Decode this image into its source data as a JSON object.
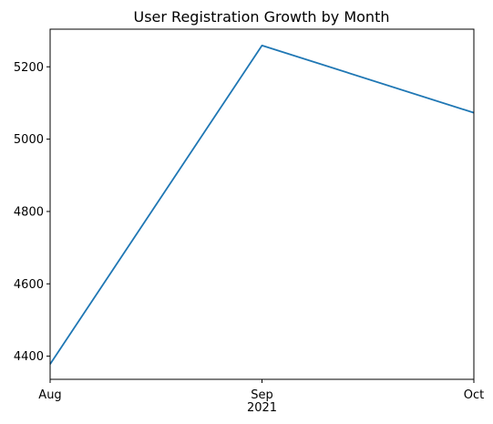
{
  "chart_data": {
    "type": "line",
    "title": "User Registration Growth by Month",
    "xlabel": "",
    "ylabel": "",
    "x": [
      "2021-08",
      "2021-09",
      "2021-10"
    ],
    "x_tick_labels": [
      "Aug",
      "Sep",
      "Oct"
    ],
    "x_tick_sublabel": "2021",
    "series": [
      {
        "values": [
          4378,
          5259,
          5073
        ],
        "color": "#1f77b4"
      }
    ],
    "ylim": [
      4336,
      5304
    ],
    "y_ticks": [
      4400,
      4600,
      4800,
      5000,
      5200
    ],
    "grid": false,
    "legend": "none"
  }
}
